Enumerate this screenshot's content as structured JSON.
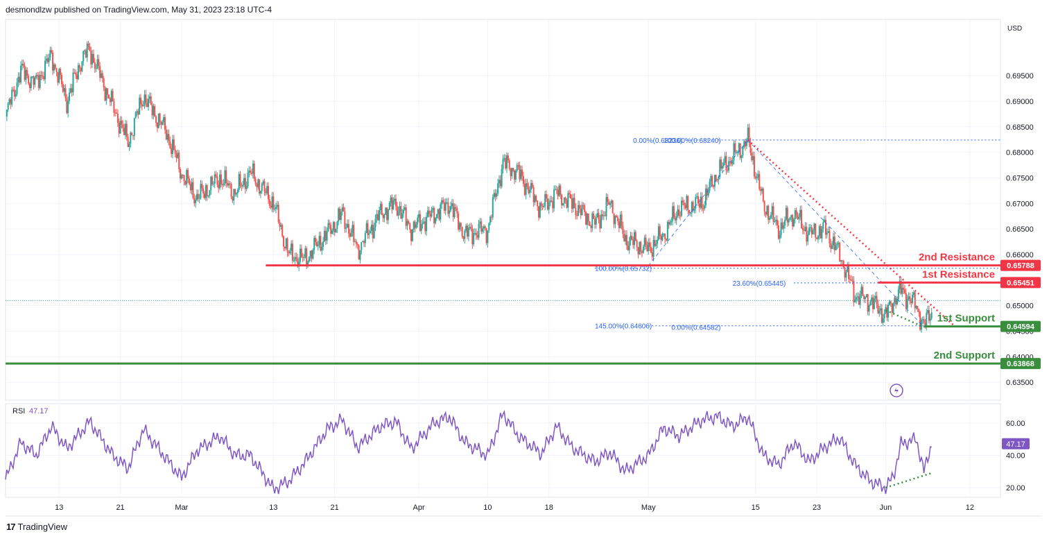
{
  "header": {
    "published": "desmondlzw published on TradingView.com, May 31, 2023 23:18 UTC-4"
  },
  "footer": {
    "brand": "TradingView"
  },
  "colors": {
    "up": "#26a69a",
    "down": "#ef5350",
    "resistance": "#f23645",
    "support": "#388e3c",
    "fib": "#2962ff",
    "fib_text": "#2962ff",
    "rsi": "#7e57c2",
    "grid": "#f0f3fa",
    "axis_text": "#131722"
  },
  "chart_data": [
    {
      "type": "candlestick",
      "title": "",
      "currency": "USD",
      "ylim": [
        0.6315,
        0.706
      ],
      "y_ticks": [
        0.635,
        0.64,
        0.645,
        0.65,
        0.655,
        0.66,
        0.665,
        0.67,
        0.675,
        0.68,
        0.685,
        0.69,
        0.695
      ],
      "y_tick_labels": [
        "0.63500",
        "0.64000",
        "0.64500",
        "0.65000",
        "0.65500",
        "0.66000",
        "0.66500",
        "0.67000",
        "0.67500",
        "0.68000",
        "0.68500",
        "0.69000",
        "0.69500"
      ],
      "x_range": [
        "2023-02-06",
        "2023-06-16"
      ],
      "x_ticks": [
        {
          "date": "2023-02-13",
          "label": "13"
        },
        {
          "date": "2023-02-21",
          "label": "21"
        },
        {
          "date": "2023-03-01",
          "label": "Mar"
        },
        {
          "date": "2023-03-13",
          "label": "13"
        },
        {
          "date": "2023-03-21",
          "label": "21"
        },
        {
          "date": "2023-04-01",
          "label": "Apr"
        },
        {
          "date": "2023-04-10",
          "label": "10"
        },
        {
          "date": "2023-04-18",
          "label": "18"
        },
        {
          "date": "2023-05-01",
          "label": "May"
        },
        {
          "date": "2023-05-15",
          "label": "15"
        },
        {
          "date": "2023-05-23",
          "label": "23"
        },
        {
          "date": "2023-06-01",
          "label": "Jun"
        },
        {
          "date": "2023-06-12",
          "label": "12"
        }
      ],
      "price_path": [
        {
          "date": "2023-02-06",
          "price": 0.687
        },
        {
          "date": "2023-02-08",
          "price": 0.696
        },
        {
          "date": "2023-02-10",
          "price": 0.6935
        },
        {
          "date": "2023-02-12",
          "price": 0.699
        },
        {
          "date": "2023-02-14",
          "price": 0.69
        },
        {
          "date": "2023-02-16",
          "price": 0.6985
        },
        {
          "date": "2023-02-17",
          "price": 0.7
        },
        {
          "date": "2023-02-20",
          "price": 0.689
        },
        {
          "date": "2023-02-22",
          "price": 0.682
        },
        {
          "date": "2023-02-24",
          "price": 0.691
        },
        {
          "date": "2023-02-27",
          "price": 0.684
        },
        {
          "date": "2023-03-01",
          "price": 0.676
        },
        {
          "date": "2023-03-03",
          "price": 0.671
        },
        {
          "date": "2023-03-06",
          "price": 0.675
        },
        {
          "date": "2023-03-08",
          "price": 0.672
        },
        {
          "date": "2023-03-10",
          "price": 0.676
        },
        {
          "date": "2023-03-13",
          "price": 0.67
        },
        {
          "date": "2023-03-15",
          "price": 0.66
        },
        {
          "date": "2023-03-17",
          "price": 0.659
        },
        {
          "date": "2023-03-20",
          "price": 0.664
        },
        {
          "date": "2023-03-22",
          "price": 0.668
        },
        {
          "date": "2023-03-24",
          "price": 0.661
        },
        {
          "date": "2023-03-27",
          "price": 0.668
        },
        {
          "date": "2023-03-29",
          "price": 0.67
        },
        {
          "date": "2023-03-31",
          "price": 0.665
        },
        {
          "date": "2023-04-03",
          "price": 0.668
        },
        {
          "date": "2023-04-05",
          "price": 0.67
        },
        {
          "date": "2023-04-07",
          "price": 0.664
        },
        {
          "date": "2023-04-10",
          "price": 0.665
        },
        {
          "date": "2023-04-12",
          "price": 0.678
        },
        {
          "date": "2023-04-14",
          "price": 0.676
        },
        {
          "date": "2023-04-17",
          "price": 0.669
        },
        {
          "date": "2023-04-19",
          "price": 0.672
        },
        {
          "date": "2023-04-21",
          "price": 0.67
        },
        {
          "date": "2023-04-24",
          "price": 0.666
        },
        {
          "date": "2023-04-26",
          "price": 0.67
        },
        {
          "date": "2023-04-28",
          "price": 0.663
        },
        {
          "date": "2023-05-01",
          "price": 0.661
        },
        {
          "date": "2023-05-03",
          "price": 0.664
        },
        {
          "date": "2023-05-05",
          "price": 0.669
        },
        {
          "date": "2023-05-08",
          "price": 0.67
        },
        {
          "date": "2023-05-10",
          "price": 0.676
        },
        {
          "date": "2023-05-12",
          "price": 0.679
        },
        {
          "date": "2023-05-14",
          "price": 0.6824
        },
        {
          "date": "2023-05-16",
          "price": 0.67
        },
        {
          "date": "2023-05-18",
          "price": 0.665
        },
        {
          "date": "2023-05-20",
          "price": 0.668
        },
        {
          "date": "2023-05-22",
          "price": 0.664
        },
        {
          "date": "2023-05-24",
          "price": 0.665
        },
        {
          "date": "2023-05-26",
          "price": 0.66
        },
        {
          "date": "2023-05-28",
          "price": 0.652
        },
        {
          "date": "2023-05-30",
          "price": 0.651
        },
        {
          "date": "2023-06-01",
          "price": 0.648
        },
        {
          "date": "2023-06-02",
          "price": 0.651
        },
        {
          "date": "2023-06-03",
          "price": 0.653
        },
        {
          "date": "2023-06-05",
          "price": 0.65
        },
        {
          "date": "2023-06-06",
          "price": 0.646
        },
        {
          "date": "2023-06-07",
          "price": 0.649
        }
      ],
      "horizontal_levels": [
        {
          "name": "2nd Resistance",
          "value": 0.65788,
          "label": "0.65788",
          "role": "resistance",
          "start": "2023-03-12"
        },
        {
          "name": "1st Resistance",
          "value": 0.65451,
          "label": "0.65451",
          "role": "resistance",
          "start": "2023-05-31"
        },
        {
          "name": "1st Support",
          "value": 0.64594,
          "label": "0.64594",
          "role": "support",
          "start": "2023-06-06"
        },
        {
          "name": "2nd Support",
          "value": 0.63868,
          "label": "0.63868",
          "role": "support",
          "start": "2023-02-06"
        }
      ],
      "fib_labels": [
        {
          "text": "0.00%(0.68236)",
          "price": 0.68236,
          "date": "2023-04-29"
        },
        {
          "text": "100.00%(0.68240)",
          "price": 0.6824,
          "date": "2023-05-03"
        },
        {
          "text": "100.00%(0.65732)",
          "price": 0.65732,
          "date": "2023-04-24"
        },
        {
          "text": "23.60%(0.65445)",
          "price": 0.65445,
          "date": "2023-05-12"
        },
        {
          "text": "145.00%(0.64606)",
          "price": 0.64606,
          "date": "2023-04-24"
        },
        {
          "text": "0.00%(0.64582)",
          "price": 0.64582,
          "date": "2023-05-04"
        }
      ],
      "current_price": 0.651
    },
    {
      "type": "line",
      "name": "RSI",
      "value_label": "47.17",
      "title": "RSI",
      "ylim": [
        14,
        72
      ],
      "y_ticks": [
        20,
        40,
        60
      ],
      "y_tick_labels": [
        "20.00",
        "40.00",
        "60.00"
      ],
      "current": 47.17,
      "points": [
        {
          "date": "2023-02-06",
          "value": 25
        },
        {
          "date": "2023-02-08",
          "value": 48
        },
        {
          "date": "2023-02-10",
          "value": 40
        },
        {
          "date": "2023-02-12",
          "value": 58
        },
        {
          "date": "2023-02-14",
          "value": 44
        },
        {
          "date": "2023-02-17",
          "value": 61
        },
        {
          "date": "2023-02-20",
          "value": 40
        },
        {
          "date": "2023-02-22",
          "value": 32
        },
        {
          "date": "2023-02-24",
          "value": 56
        },
        {
          "date": "2023-02-27",
          "value": 38
        },
        {
          "date": "2023-03-01",
          "value": 26
        },
        {
          "date": "2023-03-03",
          "value": 43
        },
        {
          "date": "2023-03-06",
          "value": 52
        },
        {
          "date": "2023-03-08",
          "value": 40
        },
        {
          "date": "2023-03-10",
          "value": 40
        },
        {
          "date": "2023-03-13",
          "value": 19
        },
        {
          "date": "2023-03-15",
          "value": 24
        },
        {
          "date": "2023-03-17",
          "value": 35
        },
        {
          "date": "2023-03-20",
          "value": 56
        },
        {
          "date": "2023-03-22",
          "value": 62
        },
        {
          "date": "2023-03-24",
          "value": 45
        },
        {
          "date": "2023-03-27",
          "value": 58
        },
        {
          "date": "2023-03-29",
          "value": 61
        },
        {
          "date": "2023-03-31",
          "value": 44
        },
        {
          "date": "2023-04-03",
          "value": 60
        },
        {
          "date": "2023-04-05",
          "value": 64
        },
        {
          "date": "2023-04-07",
          "value": 48
        },
        {
          "date": "2023-04-10",
          "value": 40
        },
        {
          "date": "2023-04-12",
          "value": 66
        },
        {
          "date": "2023-04-14",
          "value": 52
        },
        {
          "date": "2023-04-17",
          "value": 41
        },
        {
          "date": "2023-04-19",
          "value": 58
        },
        {
          "date": "2023-04-21",
          "value": 45
        },
        {
          "date": "2023-04-24",
          "value": 36
        },
        {
          "date": "2023-04-26",
          "value": 42
        },
        {
          "date": "2023-04-28",
          "value": 30
        },
        {
          "date": "2023-05-01",
          "value": 40
        },
        {
          "date": "2023-05-03",
          "value": 57
        },
        {
          "date": "2023-05-05",
          "value": 52
        },
        {
          "date": "2023-05-08",
          "value": 62
        },
        {
          "date": "2023-05-10",
          "value": 64
        },
        {
          "date": "2023-05-12",
          "value": 58
        },
        {
          "date": "2023-05-14",
          "value": 64
        },
        {
          "date": "2023-05-16",
          "value": 40
        },
        {
          "date": "2023-05-18",
          "value": 34
        },
        {
          "date": "2023-05-20",
          "value": 48
        },
        {
          "date": "2023-05-22",
          "value": 36
        },
        {
          "date": "2023-05-24",
          "value": 45
        },
        {
          "date": "2023-05-26",
          "value": 51
        },
        {
          "date": "2023-05-28",
          "value": 34
        },
        {
          "date": "2023-05-30",
          "value": 24
        },
        {
          "date": "2023-06-01",
          "value": 20
        },
        {
          "date": "2023-06-02",
          "value": 27
        },
        {
          "date": "2023-06-03",
          "value": 47
        },
        {
          "date": "2023-06-05",
          "value": 50
        },
        {
          "date": "2023-06-06",
          "value": 30
        },
        {
          "date": "2023-06-07",
          "value": 47.17
        }
      ],
      "divergence": [
        {
          "date": "2023-06-01",
          "value": 20
        },
        {
          "date": "2023-06-07",
          "value": 29
        }
      ]
    }
  ]
}
